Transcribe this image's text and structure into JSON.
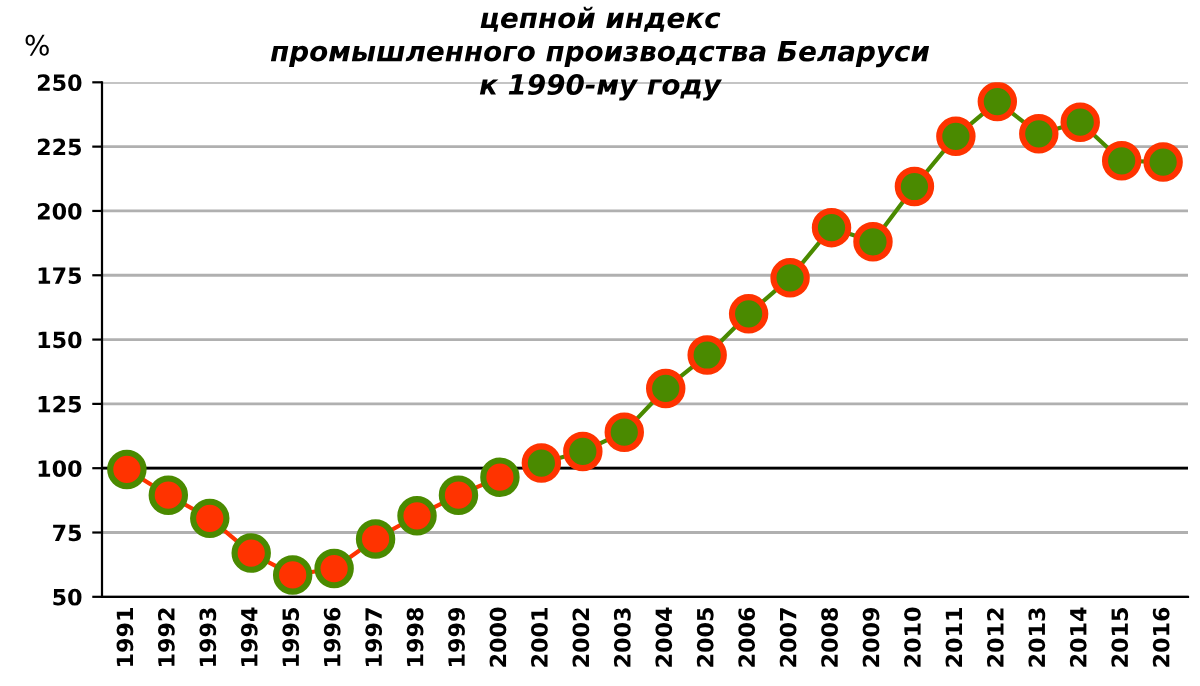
{
  "chart_data": {
    "type": "line",
    "title": "цепной индекс\nпромышленного производства Беларуси\nк 1990-му году",
    "ylabel": "%",
    "categories": [
      "1991",
      "1992",
      "1993",
      "1994",
      "1995",
      "1996",
      "1997",
      "1998",
      "1999",
      "2000",
      "2001",
      "2002",
      "2003",
      "2004",
      "2005",
      "2006",
      "2007",
      "2008",
      "2009",
      "2010",
      "2011",
      "2012",
      "2013",
      "2014",
      "2015",
      "2016"
    ],
    "series": [
      {
        "color": "#ff3300",
        "values": [
          99.5,
          89.5,
          80.5,
          67,
          58.5,
          61,
          72.5,
          81.5,
          89.5,
          96.5,
          null,
          null,
          null,
          null,
          null,
          null,
          null,
          null,
          null,
          null,
          null,
          null,
          null,
          null,
          null,
          null
        ]
      },
      {
        "color": "#4a8a00",
        "values": [
          null,
          null,
          null,
          null,
          null,
          null,
          null,
          null,
          null,
          null,
          102,
          106.5,
          114,
          131,
          144,
          160,
          174,
          193.5,
          188,
          209.5,
          229,
          242.5,
          230,
          234.5,
          219.5,
          219
        ]
      }
    ],
    "ylim": [
      50,
      250
    ],
    "yticks": [
      50,
      75,
      100,
      125,
      150,
      175,
      200,
      225,
      250
    ],
    "ref_lines": [
      {
        "axis": "y",
        "value": 100,
        "color": "#000000"
      }
    ],
    "grid": "y",
    "marker": "circle",
    "line_style": "solid",
    "legend": false
  }
}
